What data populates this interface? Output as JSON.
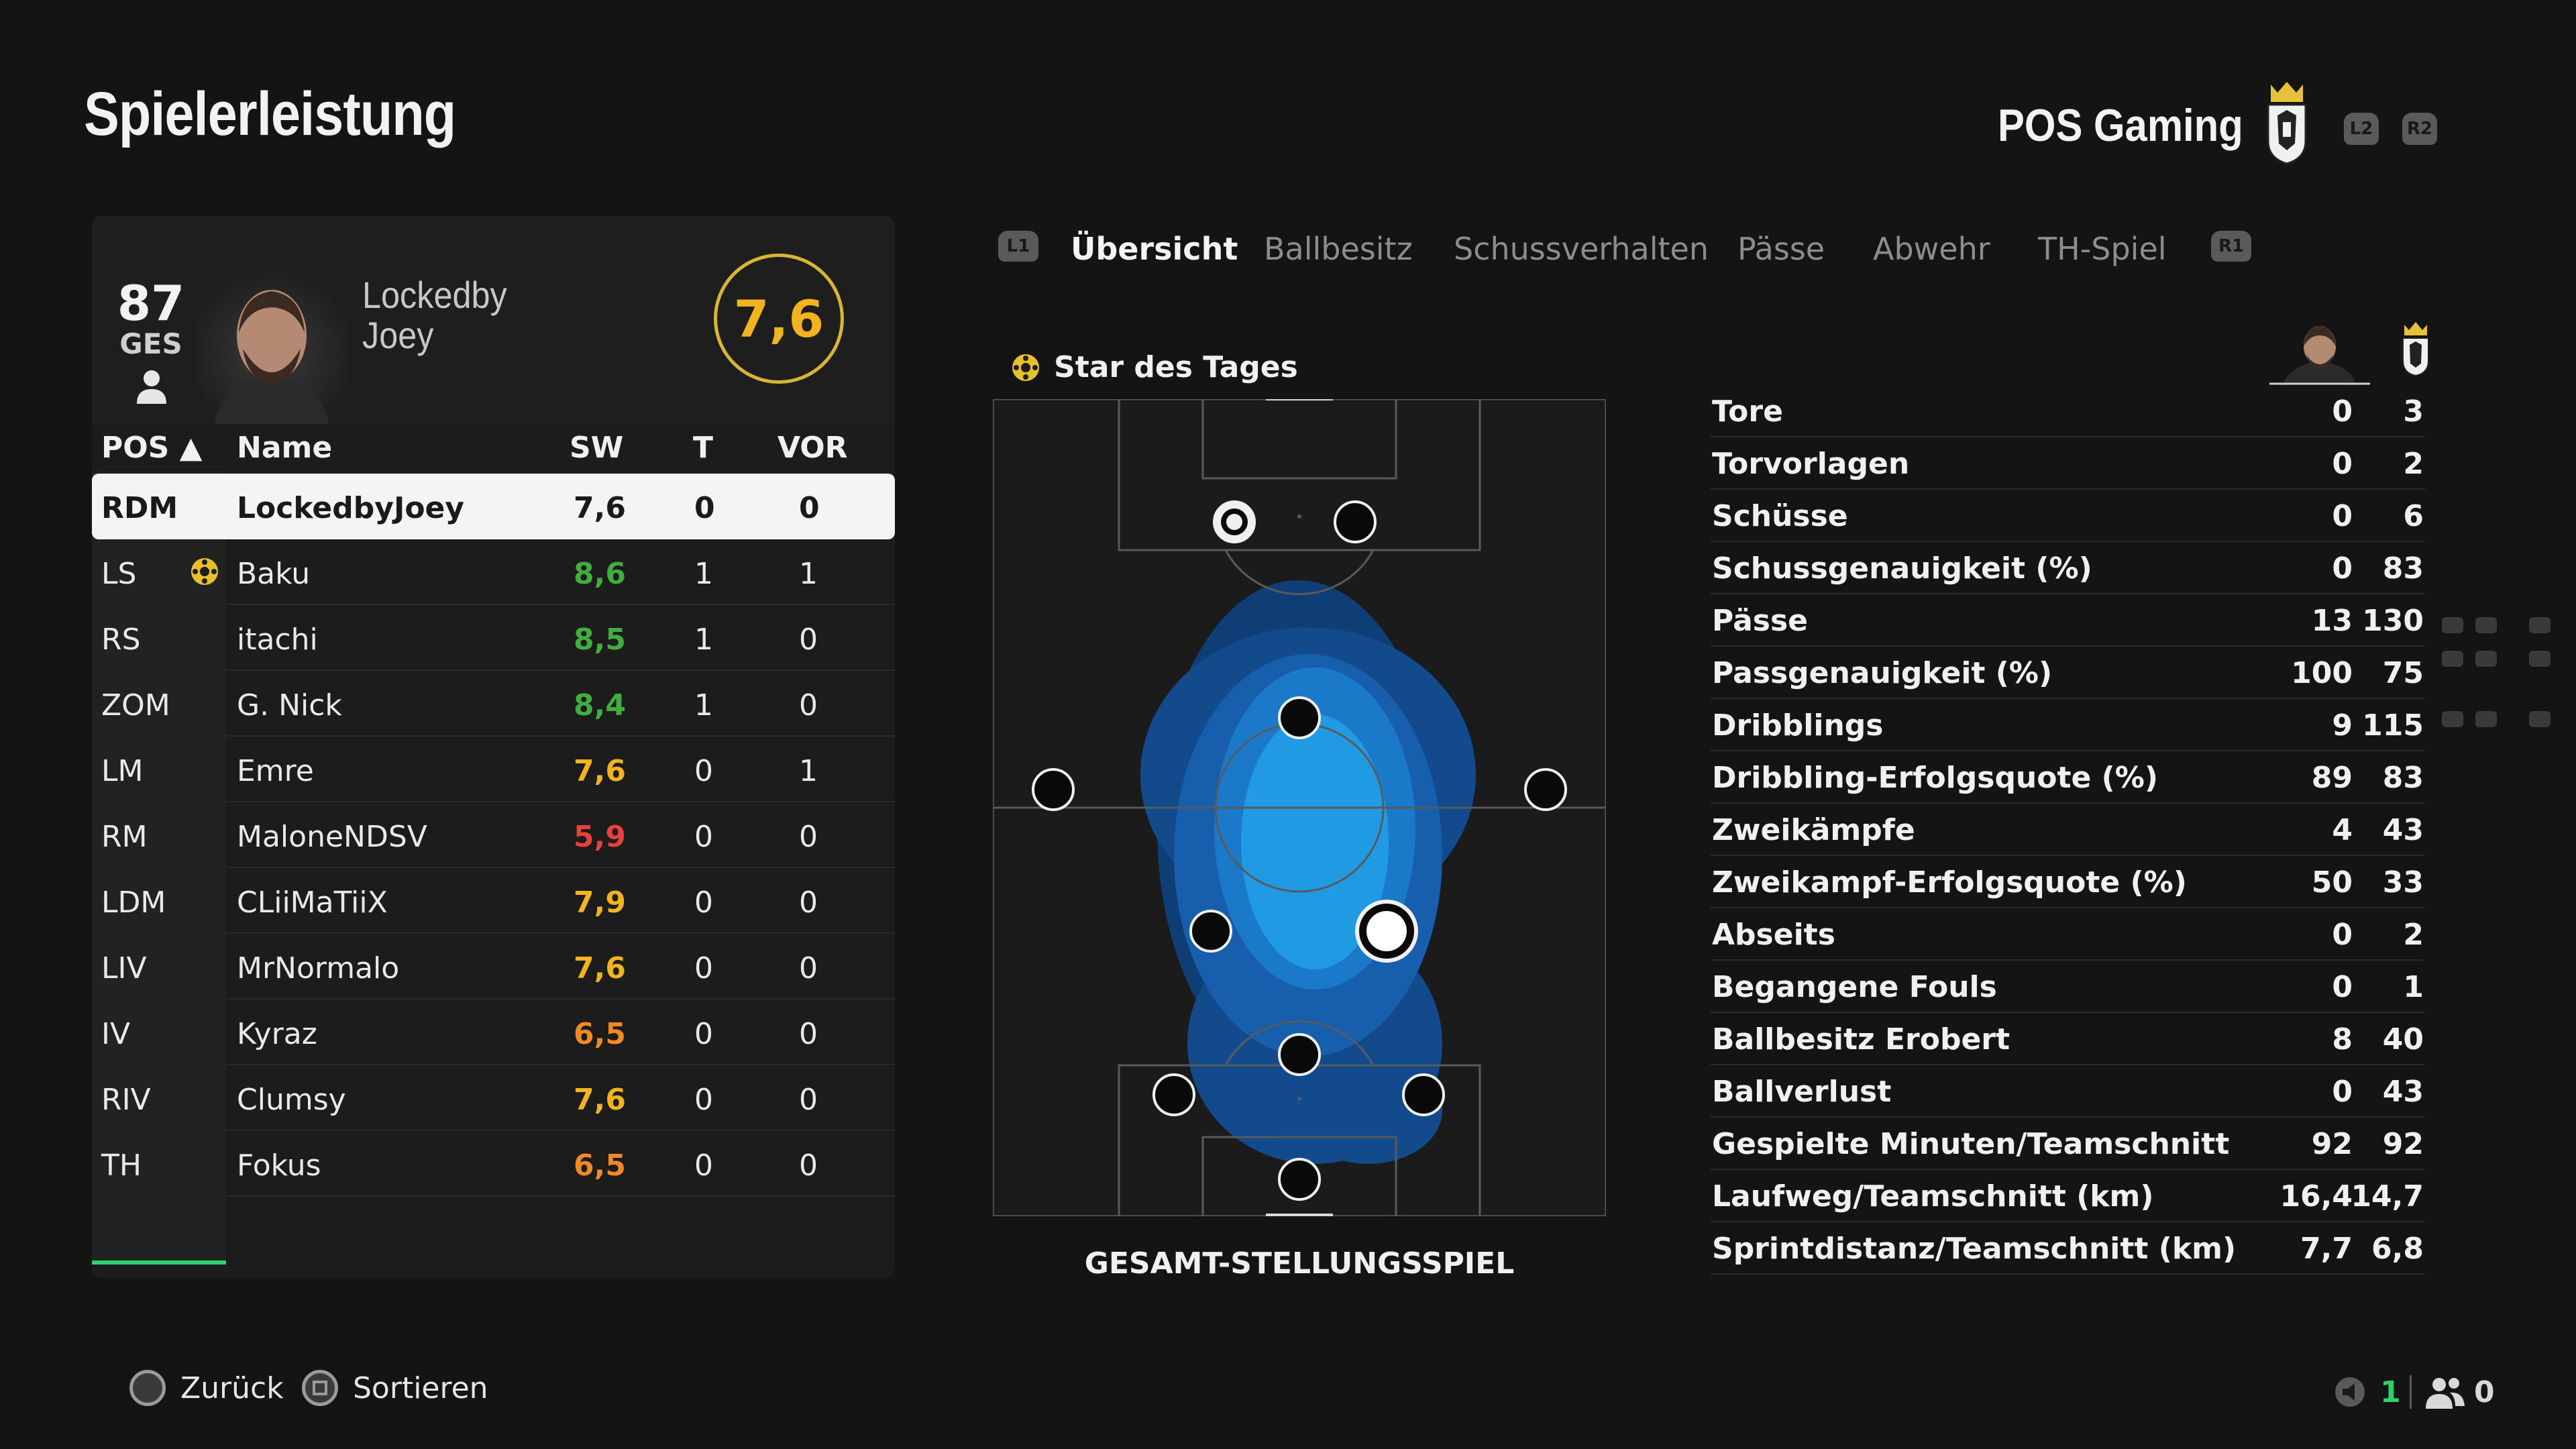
{
  "header": {
    "title": "Spielerleistung",
    "team_name": "POS Gaming",
    "l2": "L2",
    "r2": "R2"
  },
  "player_card": {
    "overall": "87",
    "overall_label": "GES",
    "name_line1": "Lockedby",
    "name_line2": "Joey",
    "rating": "7,6"
  },
  "table": {
    "headers": {
      "pos": "POS ▲",
      "name": "Name",
      "rating": "SW",
      "goals": "T",
      "assists": "VOR"
    },
    "rows": [
      {
        "pos": "RDM",
        "name": "LockedbyJoey",
        "rating": "7,6",
        "goals": "0",
        "assists": "0",
        "rating_color": "#1a1a1a",
        "star": false
      },
      {
        "pos": "LS",
        "name": "Baku",
        "rating": "8,6",
        "goals": "1",
        "assists": "1",
        "rating_color": "#3fae3c",
        "star": true
      },
      {
        "pos": "RS",
        "name": "itachi",
        "rating": "8,5",
        "goals": "1",
        "assists": "0",
        "rating_color": "#3fae3c",
        "star": false
      },
      {
        "pos": "ZOM",
        "name": "G. Nick",
        "rating": "8,4",
        "goals": "1",
        "assists": "0",
        "rating_color": "#3fae3c",
        "star": false
      },
      {
        "pos": "LM",
        "name": "Emre",
        "rating": "7,6",
        "goals": "0",
        "assists": "1",
        "rating_color": "#f2b31e",
        "star": false
      },
      {
        "pos": "RM",
        "name": "MaloneNDSV",
        "rating": "5,9",
        "goals": "0",
        "assists": "0",
        "rating_color": "#e8403a",
        "star": false
      },
      {
        "pos": "LDM",
        "name": "CLiiMaTiiX",
        "rating": "7,9",
        "goals": "0",
        "assists": "0",
        "rating_color": "#f2b31e",
        "star": false
      },
      {
        "pos": "LIV",
        "name": "MrNormalo",
        "rating": "7,6",
        "goals": "0",
        "assists": "0",
        "rating_color": "#f2b31e",
        "star": false
      },
      {
        "pos": "IV",
        "name": "Kyraz",
        "rating": "6,5",
        "goals": "0",
        "assists": "0",
        "rating_color": "#f08a24",
        "star": false
      },
      {
        "pos": "RIV",
        "name": "Clumsy",
        "rating": "7,6",
        "goals": "0",
        "assists": "0",
        "rating_color": "#f2b31e",
        "star": false
      },
      {
        "pos": "TH",
        "name": "Fokus",
        "rating": "6,5",
        "goals": "0",
        "assists": "0",
        "rating_color": "#f08a24",
        "star": false
      }
    ]
  },
  "tabs": {
    "l1": "L1",
    "r1": "R1",
    "items": [
      "Übersicht",
      "Ballbesitz",
      "Schussverhalten",
      "Pässe",
      "Abwehr",
      "TH-Spiel"
    ],
    "active": "Übersicht"
  },
  "pitch": {
    "star_of_day": "Star des Tages",
    "label": "GESAMT-STELLUNGSSPIEL"
  },
  "stats": [
    {
      "label": "Tore",
      "player": "0",
      "team": "3"
    },
    {
      "label": "Torvorlagen",
      "player": "0",
      "team": "2"
    },
    {
      "label": "Schüsse",
      "player": "0",
      "team": "6"
    },
    {
      "label": "Schussgenauigkeit (%)",
      "player": "0",
      "team": "83"
    },
    {
      "label": "Pässe",
      "player": "13",
      "team": "130"
    },
    {
      "label": "Passgenauigkeit (%)",
      "player": "100",
      "team": "75"
    },
    {
      "label": "Dribblings",
      "player": "9",
      "team": "115"
    },
    {
      "label": "Dribbling-Erfolgsquote (%)",
      "player": "89",
      "team": "83"
    },
    {
      "label": "Zweikämpfe",
      "player": "4",
      "team": "43"
    },
    {
      "label": "Zweikampf-Erfolgsquote (%)",
      "player": "50",
      "team": "33"
    },
    {
      "label": "Abseits",
      "player": "0",
      "team": "2"
    },
    {
      "label": "Begangene Fouls",
      "player": "0",
      "team": "1"
    },
    {
      "label": "Ballbesitz Erobert",
      "player": "8",
      "team": "40"
    },
    {
      "label": "Ballverlust",
      "player": "0",
      "team": "43"
    },
    {
      "label": "Gespielte Minuten/Teamschnitt",
      "player": "92",
      "team": "92"
    },
    {
      "label": "Laufweg/Teamschnitt (km)",
      "player": "16,4",
      "team": "14,7"
    },
    {
      "label": "Sprintdistanz/Teamschnitt (km)",
      "player": "7,7",
      "team": "6,8"
    }
  ],
  "footer": {
    "back": "Zurück",
    "sort": "Sortieren",
    "speaker_count": "1",
    "party_count": "0"
  },
  "colors": {
    "accent_green": "#2ad36b",
    "rating_gold": "#f2b31e",
    "heatmap_blue": "#1e8fe6"
  }
}
